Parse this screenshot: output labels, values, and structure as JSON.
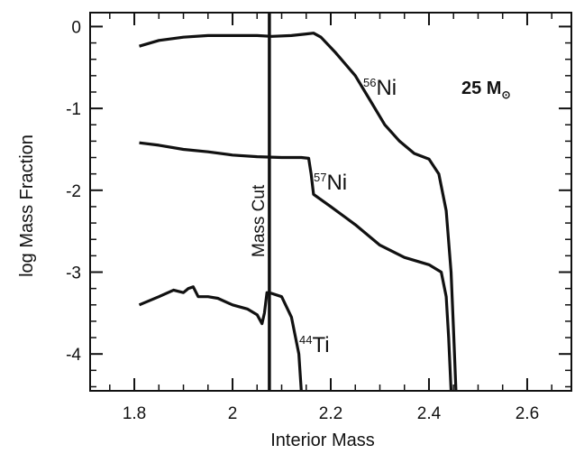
{
  "chart_data": {
    "type": "line",
    "xlabel": "Interior Mass",
    "ylabel": "log Mass Fraction",
    "xlim": [
      1.71,
      2.69
    ],
    "ylim": [
      -4.45,
      0.17
    ],
    "x_ticks": [
      "1.8",
      "2",
      "2.2",
      "2.4",
      "2.6"
    ],
    "x_tick_values": [
      1.8,
      2.0,
      2.2,
      2.4,
      2.6
    ],
    "y_ticks": [
      "0",
      "-1",
      "-2",
      "-3",
      "-4"
    ],
    "y_tick_values": [
      0,
      -1,
      -2,
      -3,
      -4
    ],
    "annotations": {
      "mass_label": "25 M",
      "mass_sun_symbol": "⊙",
      "mass_cut": {
        "label": "Mass Cut",
        "x": 2.075
      }
    },
    "series": [
      {
        "name": "56Ni",
        "superscript": "56",
        "element": "Ni",
        "points": [
          [
            1.81,
            -0.24
          ],
          [
            1.85,
            -0.17
          ],
          [
            1.9,
            -0.13
          ],
          [
            1.95,
            -0.11
          ],
          [
            2.0,
            -0.11
          ],
          [
            2.05,
            -0.11
          ],
          [
            2.08,
            -0.12
          ],
          [
            2.12,
            -0.11
          ],
          [
            2.15,
            -0.09
          ],
          [
            2.165,
            -0.08
          ],
          [
            2.18,
            -0.13
          ],
          [
            2.21,
            -0.32
          ],
          [
            2.25,
            -0.6
          ],
          [
            2.28,
            -0.9
          ],
          [
            2.31,
            -1.2
          ],
          [
            2.34,
            -1.4
          ],
          [
            2.37,
            -1.55
          ],
          [
            2.4,
            -1.62
          ],
          [
            2.42,
            -1.8
          ],
          [
            2.435,
            -2.25
          ],
          [
            2.445,
            -3.0
          ],
          [
            2.45,
            -3.7
          ],
          [
            2.455,
            -4.45
          ]
        ]
      },
      {
        "name": "57Ni",
        "superscript": "57",
        "element": "Ni",
        "points": [
          [
            1.81,
            -1.42
          ],
          [
            1.85,
            -1.45
          ],
          [
            1.9,
            -1.5
          ],
          [
            1.95,
            -1.53
          ],
          [
            2.0,
            -1.57
          ],
          [
            2.05,
            -1.59
          ],
          [
            2.1,
            -1.6
          ],
          [
            2.14,
            -1.6
          ],
          [
            2.155,
            -1.61
          ],
          [
            2.16,
            -1.8
          ],
          [
            2.165,
            -2.05
          ],
          [
            2.2,
            -2.2
          ],
          [
            2.25,
            -2.42
          ],
          [
            2.3,
            -2.67
          ],
          [
            2.35,
            -2.82
          ],
          [
            2.4,
            -2.91
          ],
          [
            2.425,
            -3.0
          ],
          [
            2.435,
            -3.3
          ],
          [
            2.44,
            -3.8
          ],
          [
            2.445,
            -4.45
          ]
        ]
      },
      {
        "name": "44Ti",
        "superscript": "44",
        "element": "Ti",
        "points": [
          [
            1.81,
            -3.4
          ],
          [
            1.85,
            -3.3
          ],
          [
            1.88,
            -3.22
          ],
          [
            1.9,
            -3.25
          ],
          [
            1.91,
            -3.2
          ],
          [
            1.92,
            -3.18
          ],
          [
            1.93,
            -3.3
          ],
          [
            1.95,
            -3.3
          ],
          [
            1.97,
            -3.32
          ],
          [
            2.0,
            -3.4
          ],
          [
            2.03,
            -3.45
          ],
          [
            2.05,
            -3.52
          ],
          [
            2.06,
            -3.63
          ],
          [
            2.065,
            -3.5
          ],
          [
            2.07,
            -3.25
          ],
          [
            2.08,
            -3.26
          ],
          [
            2.1,
            -3.3
          ],
          [
            2.12,
            -3.55
          ],
          [
            2.135,
            -4.0
          ],
          [
            2.14,
            -4.45
          ]
        ]
      }
    ],
    "grid": false,
    "legend": "none"
  }
}
